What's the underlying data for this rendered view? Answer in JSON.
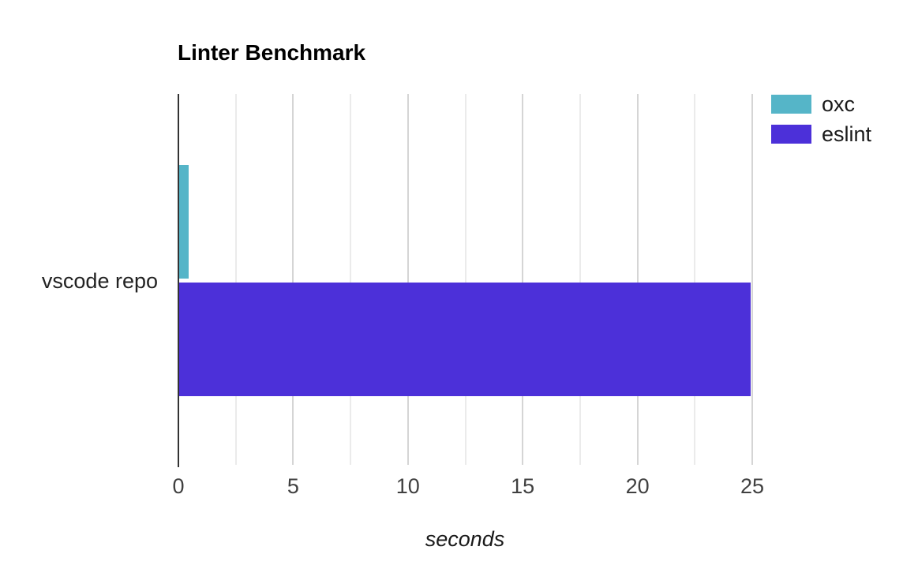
{
  "chart_data": {
    "type": "bar",
    "orientation": "horizontal",
    "title": "Linter Benchmark",
    "xlabel": "seconds",
    "categories": [
      "vscode repo"
    ],
    "series": [
      {
        "name": "oxc",
        "color": "#55b5c8",
        "values": [
          0.4
        ]
      },
      {
        "name": "eslint",
        "color": "#4c30d9",
        "values": [
          24.9
        ]
      }
    ],
    "xlim": [
      0,
      25
    ],
    "x_ticks": [
      "0",
      "5",
      "10",
      "15",
      "20",
      "25"
    ],
    "x_minor_grid_step": 2.5,
    "grid": true,
    "legend_position": "top-right"
  },
  "colors": {
    "background": "#ffffff",
    "major_grid": "#d5d5d5",
    "minor_grid": "#ebebeb",
    "axis_line": "#333333",
    "tick_label": "#404040",
    "text": "#1a1a1a"
  }
}
